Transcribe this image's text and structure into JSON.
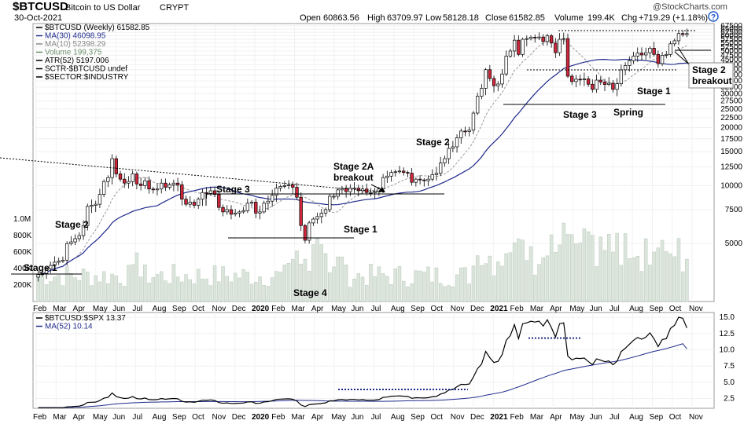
{
  "header": {
    "symbol": "$BTCUSD",
    "name": "Bitcoin to US Dollar",
    "exchange": "CRYPT",
    "date": "30-Oct-2021",
    "watermark": "@StockCharts.com",
    "open_label": "Open",
    "open": "60863.56",
    "high_label": "High",
    "high": "63709.97",
    "low_label": "Low",
    "low": "58128.18",
    "close_label": "Close",
    "close": "61582.85",
    "volume_label": "Volume",
    "volume": "199.4K",
    "chg_label": "Chg",
    "chg": "+719.29 (+1.18%)"
  },
  "legend": [
    {
      "text": "$BTCUSD (Weekly) 61582.85",
      "color": "#000000"
    },
    {
      "text": "MA(30) 46098.95",
      "color": "#1f2a8c"
    },
    {
      "text": "MA(10) 52398.29",
      "color": "#888888"
    },
    {
      "text": "Volume 199,375",
      "color": "#6d8f6d"
    },
    {
      "text": "ATR(52) 5197.006",
      "color": "#000000"
    },
    {
      "text": "SCTR-$BTCUSD undef",
      "color": "#000000"
    },
    {
      "text": "$SECTOR:$INDUSTRY",
      "color": "#000000"
    }
  ],
  "lower_legend": [
    {
      "text": "$BTCUSD:$SPX 13.37",
      "color": "#000000"
    },
    {
      "text": "MA(52) 10.14",
      "color": "#1f2a8c"
    }
  ],
  "annotations": {
    "stage1_left": "Stage 1",
    "stage2_left": "Stage 2",
    "stage3_mid": "Stage 3",
    "stage1_mid": "Stage 1",
    "stage4": "Stage 4",
    "stage2a_line1": "Stage 2A",
    "stage2a_line2": "breakout",
    "stage2_mid": "Stage 2",
    "stage3_right": "Stage 3",
    "spring": "Spring",
    "stage1_right": "Stage 1",
    "stage2_box_line1": "Stage 2",
    "stage2_box_line2": "breakout"
  },
  "chart_data": [
    {
      "type": "candlestick",
      "title": "$BTCUSD (Weekly)",
      "y_scale": "log",
      "ylim": [
        2500,
        67500
      ],
      "y_ticks": [
        5000,
        7500,
        10000,
        12500,
        15000,
        17500,
        20000,
        22500,
        25000,
        27500,
        30000,
        32500,
        35000,
        37500,
        40000,
        42500,
        45000,
        47500,
        50000,
        52500,
        55000,
        57500,
        60000,
        62500,
        65000,
        67500
      ],
      "x_tick_labels": [
        "Feb",
        "Mar",
        "Apr",
        "May",
        "Jun",
        "Jul",
        "Aug",
        "Sep",
        "Oct",
        "Nov",
        "Dec",
        "2020",
        "Feb",
        "Mar",
        "Apr",
        "May",
        "Jun",
        "Jul",
        "Aug",
        "Sep",
        "Oct",
        "Nov",
        "Dec",
        "2021",
        "Feb",
        "Mar",
        "Apr",
        "May",
        "Jun",
        "Jul",
        "Aug",
        "Sep",
        "Oct",
        "Nov"
      ],
      "series": [
        {
          "name": "$BTCUSD (Weekly)",
          "close": [
            3450,
            3500,
            3700,
            3850,
            4000,
            4050,
            4100,
            5000,
            5100,
            5300,
            5500,
            6200,
            7800,
            7900,
            8000,
            9000,
            10500,
            11000,
            13800,
            11500,
            10800,
            10300,
            10500,
            11500,
            10200,
            10000,
            10600,
            9600,
            9500,
            9600,
            10300,
            9800,
            10100,
            10300,
            10100,
            8500,
            8000,
            8200,
            7900,
            8500,
            9200,
            9100,
            9400,
            9000,
            7700,
            7300,
            7500,
            7100,
            7200,
            7300,
            7400,
            8100,
            8200,
            7200,
            7300,
            8100,
            8300,
            8900,
            9700,
            9900,
            10000,
            10100,
            9800,
            8700,
            6200,
            5200,
            6400,
            6700,
            6900,
            7200,
            7500,
            8800,
            8800,
            9500,
            9700,
            9300,
            9700,
            9700,
            9400,
            9600,
            9200,
            9200,
            9300,
            9600,
            11000,
            11200,
            11700,
            11800,
            11900,
            11700,
            11600,
            10400,
            10800,
            10700,
            10600,
            10800,
            11400,
            11600,
            13100,
            13800,
            15600,
            15900,
            17700,
            19200,
            19100,
            19400,
            23800,
            29100,
            32000,
            40000,
            36000,
            33000,
            33700,
            38000,
            47000,
            50000,
            56900,
            48000,
            57500,
            58000,
            59000,
            58500,
            59100,
            56000,
            60000,
            55000,
            49000,
            57500,
            58000,
            37000,
            34700,
            35700,
            35500,
            35800,
            33600,
            31600,
            35300,
            34500,
            33500,
            34000,
            31600,
            33800,
            39900,
            42000,
            44500,
            47000,
            48800,
            47700,
            49000,
            51700,
            48000,
            43000,
            47500,
            48000,
            54500,
            56500,
            61600,
            60860,
            61582
          ]
        }
      ]
    },
    {
      "type": "bar",
      "title": "Volume",
      "y_tick_labels": [
        "200K",
        "400K",
        "600K",
        "800K",
        "1.0M"
      ]
    },
    {
      "type": "line",
      "title": "$BTCUSD:$SPX",
      "ylim": [
        1,
        15.5
      ],
      "y_ticks": [
        2.5,
        5.0,
        7.5,
        10.0,
        12.5,
        15.0
      ],
      "series": [
        {
          "name": "$BTCUSD:$SPX",
          "last": 13.37
        },
        {
          "name": "MA(52)",
          "last": 10.14
        }
      ]
    }
  ]
}
